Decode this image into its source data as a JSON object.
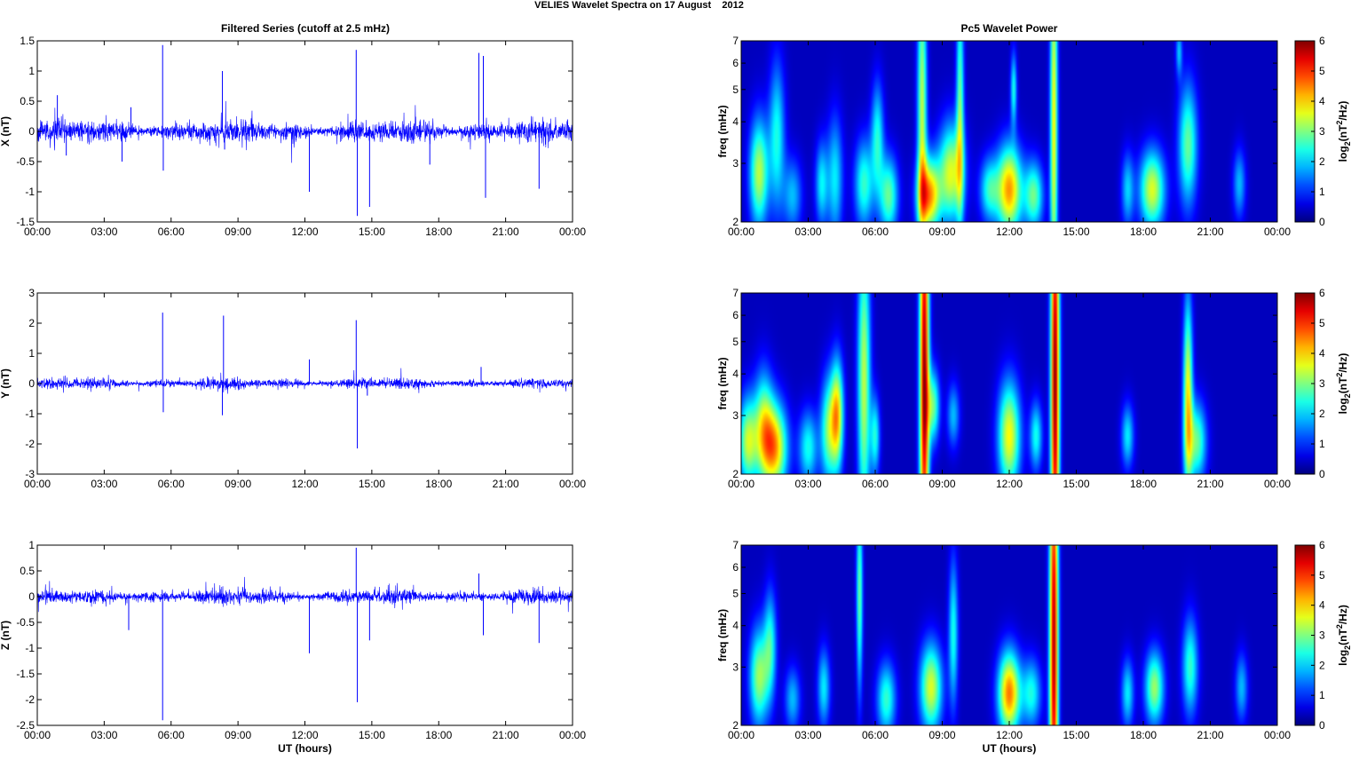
{
  "figure": {
    "suptitle": "VELIES Wavelet Spectra on 17 August    2012",
    "left_title": "Filtered Series (cutoff at 2.5 mHz)",
    "right_title": "Pc5 Wavelet Power",
    "xlabel": "UT (hours)",
    "colors": {
      "series": "#0000ff",
      "background": "#00008f"
    }
  },
  "chart_data": [
    {
      "type": "line",
      "component": "X",
      "ylabel": "X (nT)",
      "xlim": [
        0,
        24
      ],
      "ylim": [
        -1.5,
        1.5
      ],
      "x_tick_labels": [
        "00:00",
        "03:00",
        "06:00",
        "09:00",
        "12:00",
        "15:00",
        "18:00",
        "21:00",
        "00:00"
      ],
      "y_ticks": [
        1.5,
        1,
        0.5,
        0,
        -0.5,
        -1,
        -1.5
      ],
      "y_tick_labels": [
        "1.5",
        "1",
        "0.5",
        "0",
        "-0.5",
        "-1",
        "-1.5"
      ],
      "noise_amplitude": 0.13,
      "spikes": [
        [
          0.9,
          0.6
        ],
        [
          1.3,
          -0.4
        ],
        [
          3.8,
          -0.5
        ],
        [
          4.2,
          0.4
        ],
        [
          5.62,
          1.43
        ],
        [
          5.65,
          -0.65
        ],
        [
          8.3,
          1.0
        ],
        [
          8.4,
          -0.3
        ],
        [
          12.2,
          -1.0
        ],
        [
          14.3,
          1.35
        ],
        [
          14.35,
          -1.4
        ],
        [
          14.9,
          -1.25
        ],
        [
          17.6,
          -0.55
        ],
        [
          19.8,
          1.3
        ],
        [
          20.0,
          1.25
        ],
        [
          20.1,
          -1.1
        ],
        [
          22.5,
          -0.95
        ]
      ]
    },
    {
      "type": "line",
      "component": "Y",
      "ylabel": "Y (nT)",
      "xlim": [
        0,
        24
      ],
      "ylim": [
        -3,
        3
      ],
      "x_tick_labels": [
        "00:00",
        "03:00",
        "06:00",
        "09:00",
        "12:00",
        "15:00",
        "18:00",
        "21:00",
        "00:00"
      ],
      "y_ticks": [
        3,
        2,
        1,
        0,
        -1,
        -2,
        -3
      ],
      "y_tick_labels": [
        "3",
        "2",
        "1",
        "0",
        "-1",
        "-2",
        "-3"
      ],
      "noise_amplitude": 0.12,
      "spikes": [
        [
          5.62,
          2.35
        ],
        [
          5.65,
          -0.95
        ],
        [
          8.35,
          2.25
        ],
        [
          8.3,
          -1.05
        ],
        [
          12.2,
          0.8
        ],
        [
          14.3,
          2.1
        ],
        [
          14.35,
          -2.15
        ],
        [
          14.8,
          -0.4
        ],
        [
          19.9,
          0.55
        ]
      ]
    },
    {
      "type": "line",
      "component": "Z",
      "ylabel": "Z (nT)",
      "xlim": [
        0,
        24
      ],
      "ylim": [
        -2.5,
        1
      ],
      "x_tick_labels": [
        "00:00",
        "03:00",
        "06:00",
        "09:00",
        "12:00",
        "15:00",
        "18:00",
        "21:00",
        "00:00"
      ],
      "x_label": "UT (hours)",
      "y_ticks": [
        1,
        0.5,
        0,
        -0.5,
        -1,
        -1.5,
        -2,
        -2.5
      ],
      "y_tick_labels": [
        "1",
        "0.5",
        "0",
        "-0.5",
        "-1",
        "-1.5",
        "-2",
        "-2.5"
      ],
      "noise_amplitude": 0.1,
      "spikes": [
        [
          4.1,
          -0.65
        ],
        [
          5.62,
          -2.4
        ],
        [
          12.2,
          -1.1
        ],
        [
          14.3,
          0.95
        ],
        [
          14.35,
          -2.05
        ],
        [
          14.9,
          -0.85
        ],
        [
          19.8,
          0.45
        ],
        [
          20.0,
          -0.75
        ],
        [
          22.5,
          -0.9
        ]
      ]
    },
    {
      "type": "heatmap",
      "component": "X",
      "ylabel": "freq (mHz)",
      "colorbar_label": "log2(nT2/Hz)",
      "xlim": [
        0,
        24
      ],
      "ylim": [
        2,
        7
      ],
      "y_scale": "log",
      "clim": [
        0,
        6
      ],
      "x_tick_labels": [
        "00:00",
        "03:00",
        "06:00",
        "09:00",
        "12:00",
        "15:00",
        "18:00",
        "21:00",
        "00:00"
      ],
      "y_ticks": [
        2,
        3,
        4,
        5,
        6,
        7
      ],
      "y_tick_labels": [
        "2",
        "3",
        "4",
        "5",
        "6",
        "7"
      ],
      "colorbar_ticks": [
        "0",
        "1",
        "2",
        "3",
        "4",
        "5",
        "6"
      ],
      "blobs": [
        [
          0.8,
          2.8,
          0.3,
          2.2,
          3.0
        ],
        [
          1.6,
          3.6,
          0.25,
          3.0,
          2.0
        ],
        [
          2.3,
          2.4,
          0.3,
          1.5,
          1.5
        ],
        [
          3.6,
          2.6,
          0.2,
          1.7,
          1.8
        ],
        [
          4.2,
          2.7,
          0.25,
          2.5,
          1.8
        ],
        [
          5.5,
          2.6,
          0.3,
          1.8,
          2.2
        ],
        [
          6.1,
          3.6,
          0.2,
          2.2,
          2.0
        ],
        [
          6.6,
          2.4,
          0.3,
          1.6,
          2.5
        ],
        [
          8.1,
          4.3,
          0.15,
          6.0,
          3.0
        ],
        [
          8.4,
          2.4,
          0.35,
          1.5,
          4.0
        ],
        [
          9.4,
          2.8,
          0.4,
          2.0,
          3.2
        ],
        [
          9.8,
          4.5,
          0.12,
          5.0,
          2.5
        ],
        [
          11.1,
          2.5,
          0.3,
          1.3,
          2.0
        ],
        [
          12.0,
          2.5,
          0.4,
          1.8,
          4.0
        ],
        [
          12.2,
          5.0,
          0.1,
          1.5,
          2.0
        ],
        [
          13.1,
          2.4,
          0.3,
          1.4,
          2.5
        ],
        [
          14.0,
          4.0,
          0.12,
          8.0,
          3.4
        ],
        [
          18.4,
          2.5,
          0.4,
          1.6,
          3.2
        ],
        [
          17.3,
          2.5,
          0.2,
          1.5,
          1.6
        ],
        [
          20.0,
          3.4,
          0.3,
          2.5,
          2.5
        ],
        [
          22.3,
          2.6,
          0.2,
          1.4,
          1.5
        ],
        [
          19.6,
          6.5,
          0.1,
          1.0,
          1.5
        ]
      ]
    },
    {
      "type": "heatmap",
      "component": "Y",
      "ylabel": "freq (mHz)",
      "colorbar_label": "log2(nT2/Hz)",
      "xlim": [
        0,
        24
      ],
      "ylim": [
        2,
        7
      ],
      "y_scale": "log",
      "clim": [
        0,
        6
      ],
      "x_tick_labels": [
        "00:00",
        "03:00",
        "06:00",
        "09:00",
        "12:00",
        "15:00",
        "18:00",
        "21:00",
        "00:00"
      ],
      "y_ticks": [
        2,
        3,
        4,
        5,
        6,
        7
      ],
      "y_tick_labels": [
        "2",
        "3",
        "4",
        "5",
        "6",
        "7"
      ],
      "colorbar_ticks": [
        "0",
        "1",
        "2",
        "3",
        "4",
        "5",
        "6"
      ],
      "blobs": [
        [
          0.3,
          2.5,
          0.3,
          1.8,
          3.0
        ],
        [
          1.0,
          2.8,
          0.3,
          2.2,
          2.5
        ],
        [
          1.5,
          2.4,
          0.4,
          1.8,
          3.8
        ],
        [
          3.0,
          2.4,
          0.3,
          1.5,
          2.0
        ],
        [
          3.9,
          2.7,
          0.25,
          2.2,
          2.5
        ],
        [
          4.3,
          3.0,
          0.2,
          2.2,
          3.5
        ],
        [
          5.5,
          3.8,
          0.2,
          6.0,
          3.0
        ],
        [
          6.0,
          2.6,
          0.15,
          1.6,
          2.0
        ],
        [
          8.2,
          4.0,
          0.15,
          10.0,
          5.5
        ],
        [
          8.6,
          3.2,
          0.2,
          1.5,
          2.5
        ],
        [
          9.5,
          3.0,
          0.2,
          1.3,
          1.5
        ],
        [
          12.0,
          2.6,
          0.35,
          2.2,
          3.4
        ],
        [
          13.2,
          2.6,
          0.2,
          1.4,
          2.0
        ],
        [
          14.05,
          3.8,
          0.14,
          10.0,
          5.6
        ],
        [
          17.3,
          2.6,
          0.2,
          1.3,
          1.8
        ],
        [
          20.0,
          3.4,
          0.15,
          4.0,
          3.4
        ],
        [
          20.4,
          2.5,
          0.3,
          1.6,
          2.5
        ]
      ]
    },
    {
      "type": "heatmap",
      "component": "Z",
      "ylabel": "freq (mHz)",
      "colorbar_label": "log2(nT2/Hz)",
      "xlim": [
        0,
        24
      ],
      "ylim": [
        2,
        7
      ],
      "y_scale": "log",
      "clim": [
        0,
        6
      ],
      "x_tick_labels": [
        "00:00",
        "03:00",
        "06:00",
        "09:00",
        "12:00",
        "15:00",
        "18:00",
        "21:00",
        "00:00"
      ],
      "x_label": "UT (hours)",
      "y_ticks": [
        2,
        3,
        4,
        5,
        6,
        7
      ],
      "y_tick_labels": [
        "2",
        "3",
        "4",
        "5",
        "6",
        "7"
      ],
      "colorbar_ticks": [
        "0",
        "1",
        "2",
        "3",
        "4",
        "5",
        "6"
      ],
      "blobs": [
        [
          0.8,
          2.8,
          0.3,
          2.0,
          2.8
        ],
        [
          1.3,
          3.5,
          0.2,
          2.2,
          2.0
        ],
        [
          2.3,
          2.4,
          0.25,
          1.3,
          1.5
        ],
        [
          3.7,
          2.6,
          0.2,
          1.6,
          1.8
        ],
        [
          5.3,
          5.0,
          0.1,
          4.0,
          2.5
        ],
        [
          6.5,
          2.4,
          0.3,
          1.5,
          2.2
        ],
        [
          8.5,
          2.6,
          0.35,
          1.8,
          3.2
        ],
        [
          9.5,
          3.8,
          0.15,
          3.0,
          2.0
        ],
        [
          12.0,
          2.5,
          0.35,
          1.7,
          4.2
        ],
        [
          13.0,
          2.5,
          0.3,
          1.4,
          2.0
        ],
        [
          14.0,
          3.5,
          0.14,
          10.0,
          5.4
        ],
        [
          17.3,
          2.5,
          0.2,
          1.4,
          1.8
        ],
        [
          18.5,
          2.6,
          0.3,
          1.5,
          2.8
        ],
        [
          20.1,
          3.0,
          0.25,
          2.0,
          2.2
        ],
        [
          22.4,
          2.6,
          0.2,
          1.4,
          1.5
        ]
      ]
    }
  ]
}
